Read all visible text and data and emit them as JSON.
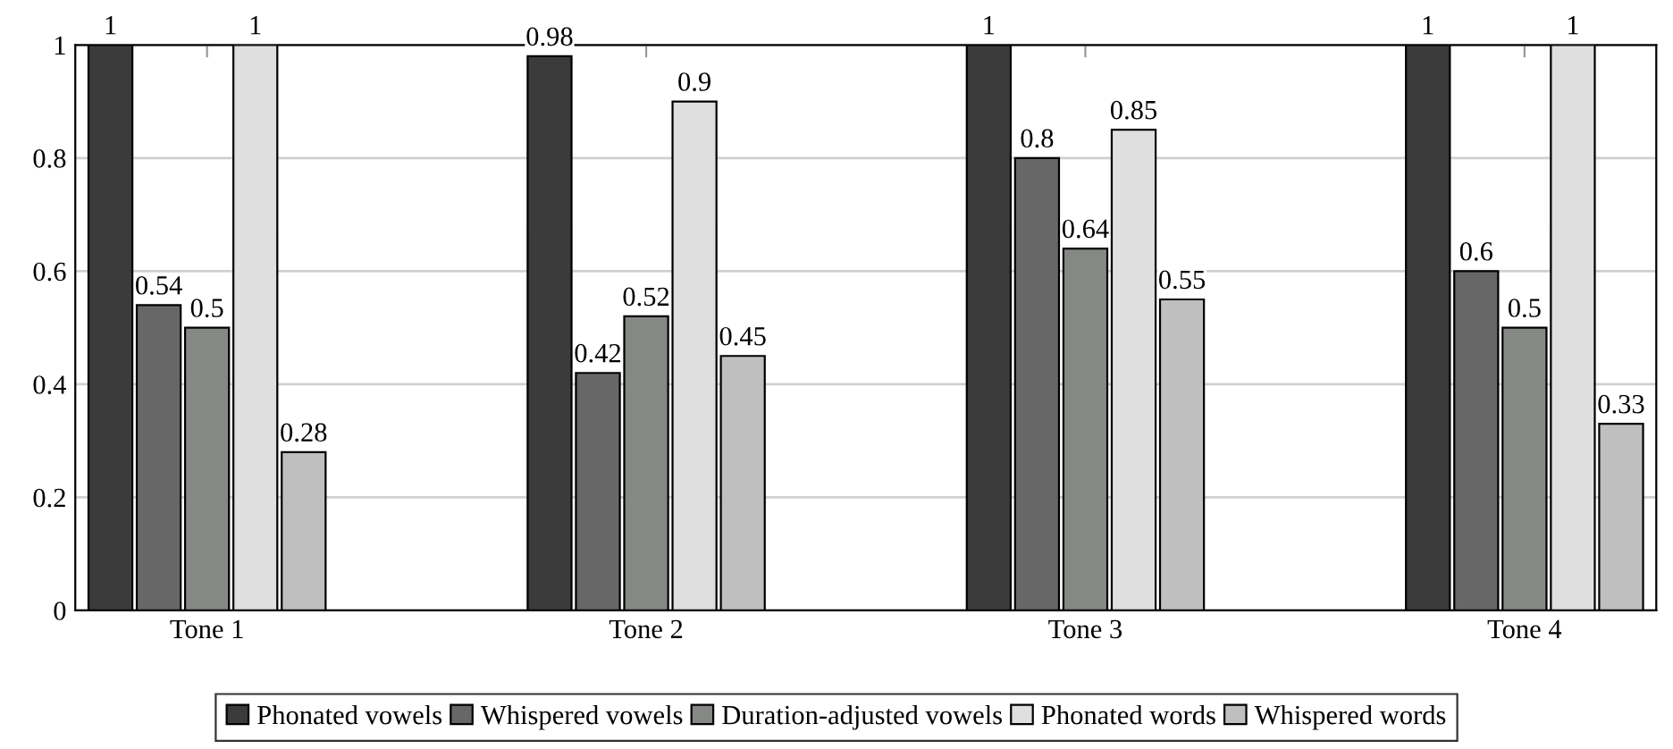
{
  "chart_data": {
    "type": "bar",
    "categories": [
      "Tone 1",
      "Tone 2",
      "Tone 3",
      "Tone 4"
    ],
    "series": [
      {
        "name": "Phonated vowels",
        "color": "#3a3b3a",
        "values": [
          1,
          0.98,
          1,
          1
        ]
      },
      {
        "name": "Whispered vowels",
        "color": "#666766",
        "values": [
          0.54,
          0.42,
          0.8,
          0.6
        ]
      },
      {
        "name": "Duration-adjusted vowels",
        "color": "#868886",
        "values": [
          0.5,
          0.52,
          0.64,
          0.5
        ]
      },
      {
        "name": "Phonated words",
        "color": "#e0dfe0",
        "values": [
          1,
          0.9,
          0.85,
          1
        ]
      },
      {
        "name": "Whispered words",
        "color": "#c0bfc0",
        "values": [
          0.28,
          0.45,
          0.55,
          0.33
        ]
      }
    ],
    "ylim": [
      0,
      1
    ],
    "yticks": [
      0,
      0.2,
      0.4,
      0.6,
      0.8,
      1
    ],
    "grid": "y",
    "legend": "bottom",
    "data_labels": true
  }
}
